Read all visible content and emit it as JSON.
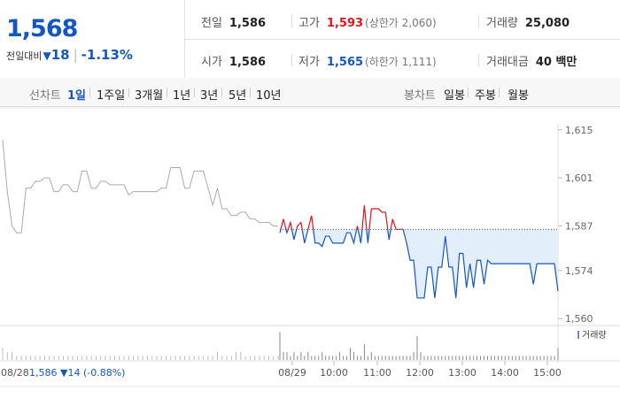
{
  "quote": {
    "price": "1,568",
    "change_label": "전일대비",
    "change_arrow": "▼",
    "change_value": "18",
    "change_pct": "-1.13%"
  },
  "stats": {
    "prev_close_label": "전일",
    "prev_close": "1,586",
    "high_label": "고가",
    "high": "1,593",
    "upper_limit": "(상한가 2,060)",
    "volume_label": "거래량",
    "volume": "25,080",
    "open_label": "시가",
    "open": "1,586",
    "low_label": "저가",
    "low": "1,565",
    "lower_limit": "(하한가 1,111)",
    "amount_label": "거래대금",
    "amount": "40 백만"
  },
  "tabs": {
    "line_label": "선차트",
    "line_periods": [
      "1일",
      "1주일",
      "3개월",
      "1년",
      "3년",
      "5년",
      "10년"
    ],
    "candle_label": "봉차트",
    "candle_periods": [
      "일봉",
      "주봉",
      "월봉"
    ]
  },
  "colors": {
    "up": "#e0141e",
    "down": "#1457c4",
    "prev": "#aaaaaa",
    "fill": "#e3eefb"
  },
  "chart_data": {
    "type": "line",
    "ylim": [
      1558,
      1617
    ],
    "y_ticks": [
      1615,
      1601,
      1587,
      1574,
      1560
    ],
    "baseline": 1586,
    "prev_day_label": "08/28",
    "prev_day_info": "1,586 ▼14 (-0.88%)",
    "volume_label": "거래량",
    "x_labels": [
      "08/29",
      "10:00",
      "11:00",
      "12:00",
      "13:00",
      "14:00",
      "15:00"
    ],
    "prev_series": [
      1612,
      1597,
      1587,
      1585,
      1585,
      1598,
      1598,
      1600,
      1600,
      1601,
      1601,
      1597,
      1597,
      1599,
      1599,
      1597,
      1597,
      1603,
      1603,
      1598,
      1598,
      1600,
      1600,
      1599,
      1599,
      1599,
      1599,
      1596,
      1597,
      1597,
      1597,
      1597,
      1597,
      1597,
      1598,
      1598,
      1604,
      1604,
      1604,
      1598,
      1598,
      1603,
      1603,
      1603,
      1598,
      1593,
      1598,
      1592,
      1592,
      1590,
      1590,
      1591,
      1591,
      1589,
      1589,
      1588,
      1588,
      1588,
      1587,
      1587
    ],
    "today_series": [
      1585,
      1589,
      1585,
      1588,
      1583,
      1587,
      1588,
      1582,
      1586,
      1590,
      1582,
      1582,
      1581,
      1584,
      1584,
      1582,
      1582,
      1582,
      1582,
      1585,
      1585,
      1582,
      1587,
      1582,
      1593,
      1582,
      1592,
      1592,
      1592,
      1591,
      1591,
      1583,
      1589,
      1586,
      1586,
      1586,
      1582,
      1577,
      1577,
      1566,
      1566,
      1566,
      1575,
      1575,
      1566,
      1575,
      1575,
      1584,
      1575,
      1575,
      1566,
      1579,
      1579,
      1569,
      1576,
      1569,
      1577,
      1577,
      1570,
      1577,
      1576,
      1576,
      1576,
      1576,
      1576,
      1576,
      1576,
      1576,
      1576,
      1576,
      1576,
      1576,
      1570,
      1576,
      1576,
      1576,
      1576,
      1576,
      1576,
      1568
    ],
    "volume_prev": [
      3,
      2,
      2,
      1,
      1,
      1,
      1,
      1,
      1,
      1,
      1,
      1,
      1,
      1,
      1,
      1,
      1,
      1,
      1,
      1,
      1,
      1,
      1,
      1,
      1,
      1,
      1,
      1,
      1,
      1,
      1,
      1,
      1,
      1,
      1,
      1,
      1,
      1,
      1,
      1,
      1,
      1,
      1,
      1,
      1,
      1,
      2,
      1,
      1,
      1,
      2,
      2,
      1,
      1,
      1,
      1,
      1,
      1,
      1,
      1
    ],
    "volume_today": [
      7,
      2,
      2,
      1,
      2,
      1,
      2,
      1,
      2,
      1,
      1,
      1,
      2,
      1,
      1,
      1,
      1,
      2,
      1,
      1,
      3,
      2,
      1,
      1,
      4,
      1,
      2,
      1,
      1,
      1,
      1,
      1,
      1,
      1,
      1,
      1,
      1,
      1,
      2,
      6,
      2,
      1,
      1,
      1,
      1,
      1,
      1,
      1,
      1,
      1,
      1,
      1,
      1,
      1,
      1,
      1,
      1,
      1,
      1,
      1,
      1,
      1,
      1,
      1,
      1,
      1,
      1,
      1,
      1,
      1,
      1,
      1,
      1,
      1,
      1,
      1,
      1,
      1,
      1,
      3
    ]
  }
}
